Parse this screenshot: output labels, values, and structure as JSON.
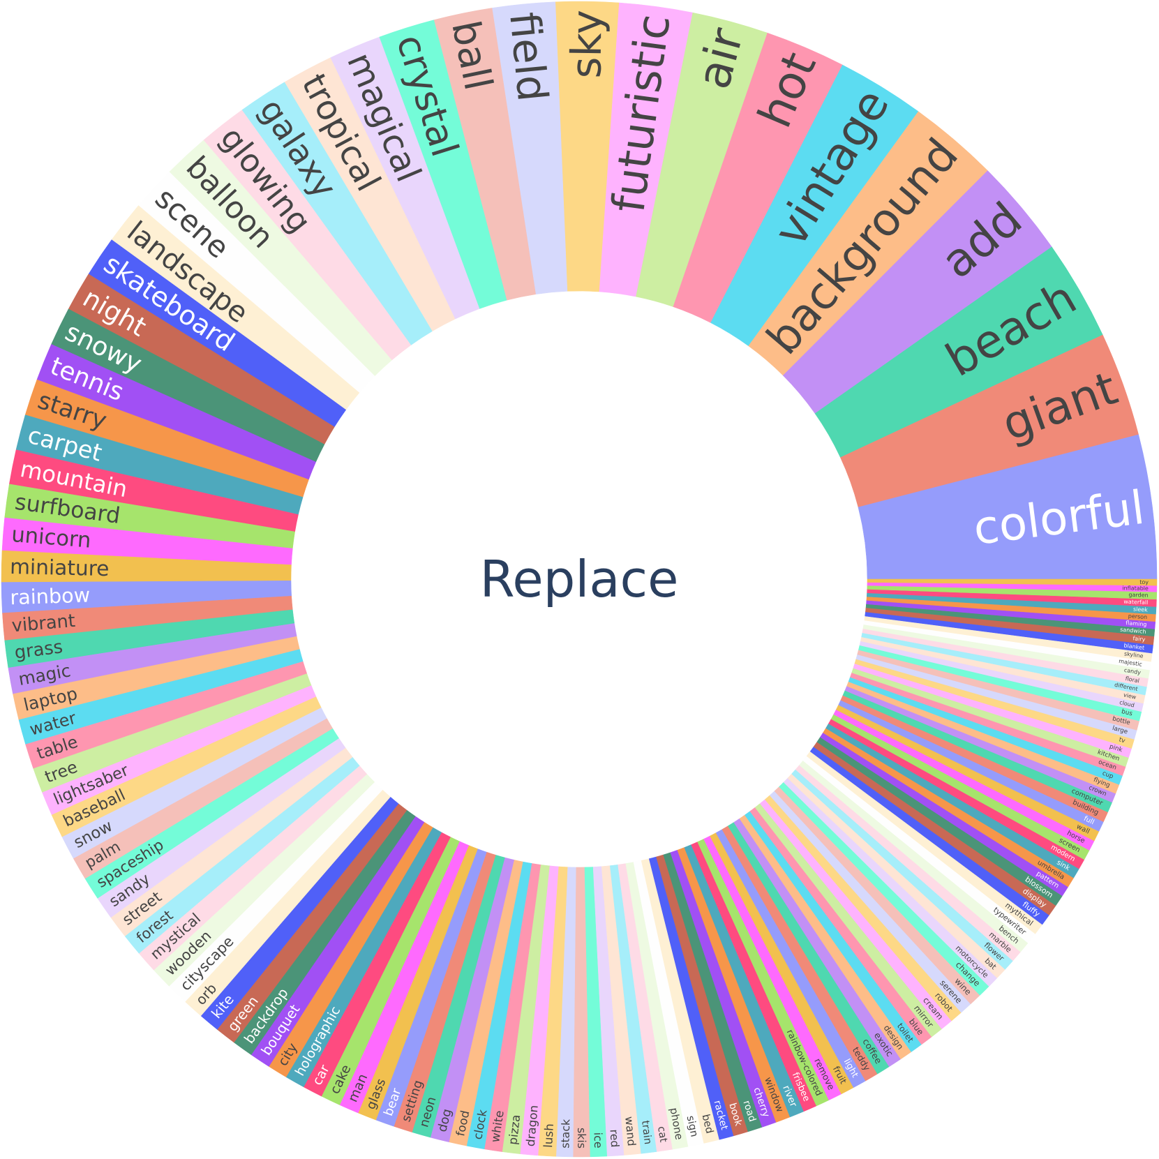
{
  "chart_data": {
    "type": "sunburst",
    "root": "Replace",
    "labels": [
      "colorful",
      "giant",
      "beach",
      "add",
      "background",
      "vintage",
      "hot",
      "air",
      "futuristic",
      "sky",
      "field",
      "ball",
      "crystal",
      "magical",
      "tropical",
      "galaxy",
      "glowing",
      "balloon",
      "scene",
      "landscape",
      "skateboard",
      "night",
      "snowy",
      "tennis",
      "starry",
      "carpet",
      "mountain",
      "surfboard",
      "unicorn",
      "miniature",
      "rainbow",
      "vibrant",
      "grass",
      "magic",
      "laptop",
      "water",
      "table",
      "tree",
      "lightsaber",
      "baseball",
      "snow",
      "palm",
      "spaceship",
      "sandy",
      "street",
      "forest",
      "mystical",
      "wooden",
      "cityscape",
      "orb",
      "kite",
      "green",
      "backdrop",
      "bouquet",
      "city",
      "holographic",
      "car",
      "cake",
      "man",
      "glass",
      "bear",
      "setting",
      "neon",
      "dog",
      "food",
      "clock",
      "white",
      "pizza",
      "dragon",
      "lush",
      "stack",
      "skis",
      "ice",
      "red",
      "wand",
      "train",
      "cat",
      "phone",
      "sign",
      "bed",
      "racket",
      "book",
      "road",
      "cherry",
      "window",
      "river",
      "frisbee",
      "rainbow-colored",
      "remove",
      "fruit",
      "light",
      "teddy",
      "coffee",
      "exotic",
      "design",
      "toilet",
      "blue",
      "mirror",
      "cream",
      "robot",
      "serene",
      "wine",
      "change",
      "motorcycle",
      "bat",
      "flower",
      "marble",
      "bench",
      "typewriter",
      "mythical",
      "fluffy",
      "display",
      "blossom",
      "pattern",
      "umbrella",
      "sink",
      "modern",
      "screen",
      "horse",
      "wall",
      "full",
      "building",
      "computer",
      "crown",
      "flying",
      "cup",
      "ocean",
      "kitchen",
      "pink",
      "tv",
      "large",
      "bottle",
      "bus",
      "cloud",
      "view",
      "different",
      "floral",
      "candy",
      "majestic",
      "skyline",
      "blanket",
      "fairy",
      "sandwich",
      "flaming",
      "person",
      "sleek",
      "waterfall",
      "garden",
      "inflatable",
      "toy"
    ],
    "values": [
      13.8,
      10,
      9.6,
      9.4,
      8.6,
      8.4,
      7.7,
      7.3,
      7,
      6,
      6,
      5.6,
      5.4,
      5.0,
      4.9,
      4.8,
      4.6,
      4.4,
      4.3,
      4.1,
      3.9,
      3.8,
      3.7,
      3.6,
      3.5,
      3.4,
      3.3,
      3.2,
      3.1,
      3.0,
      2.9,
      2.6,
      2.6,
      2.5,
      2.5,
      2.4,
      2.4,
      2.4,
      2.3,
      2.3,
      2.3,
      2.2,
      2.2,
      2.2,
      2.2,
      2.1,
      2.1,
      2.1,
      2.1,
      2.0,
      2.0,
      2.0,
      2.0,
      2.0,
      1.9,
      1.9,
      1.9,
      1.9,
      1.9,
      1.8,
      1.8,
      1.8,
      1.8,
      1.8,
      1.7,
      1.7,
      1.7,
      1.7,
      1.7,
      1.7,
      1.6,
      1.6,
      1.6,
      1.6,
      1.6,
      1.5,
      1.5,
      1.5,
      1.5,
      1.5,
      1.4,
      1.4,
      1.4,
      1.4,
      1.4,
      1.4,
      1.3,
      1.3,
      1.3,
      1.3,
      1.3,
      1.3,
      1.3,
      1.3,
      1.2,
      1.2,
      1.2,
      1.2,
      1.2,
      1.2,
      1.2,
      1.2,
      1.2,
      1.1,
      1.1,
      1.1,
      1.1,
      1.1,
      1.1,
      1.1,
      1.1,
      1.1,
      1.1,
      1.0,
      1.0,
      1.0,
      1.0,
      1.0,
      1.0,
      1.0,
      1.0,
      1.0,
      1.0,
      0.9,
      0.9,
      0.9,
      0.9,
      0.9,
      0.9,
      0.9,
      0.9,
      0.9,
      0.9,
      0.8,
      0.8,
      0.8,
      0.8,
      0.8,
      0.8,
      0.8,
      0.8,
      0.8,
      0.7,
      0.7,
      0.7,
      0.7,
      0.7,
      0.7,
      0.6,
      0.6
    ],
    "palette": [
      "#959cfb",
      "#f08a78",
      "#4fd8b0",
      "#c290f5",
      "#fdbd88",
      "#5cdcf1",
      "#fe96b0",
      "#cdeea2",
      "#feb3fe",
      "#fdd886",
      "#d6d9fc",
      "#f5c0b9",
      "#74fcd8",
      "#e9d6fc",
      "#fee5d4",
      "#a6eefa",
      "#fedbe6",
      "#eefae2",
      "#fefefe",
      "#fef0d4",
      "#5060f8",
      "#c86955",
      "#4b9478",
      "#a150f4",
      "#f6964a",
      "#4ea9bd",
      "#fe4b80",
      "#a6e46c",
      "#fe6afe",
      "#f2c04f"
    ],
    "text_palette": [
      "#ffffff",
      "#444444",
      "#444444",
      "#444444",
      "#444444",
      "#444444",
      "#444444",
      "#444444",
      "#444444",
      "#444444",
      "#444444",
      "#444444",
      "#444444",
      "#444444",
      "#444444",
      "#444444",
      "#444444",
      "#444444",
      "#444444",
      "#444444",
      "#ffffff",
      "#ffffff",
      "#ffffff",
      "#ffffff",
      "#444444",
      "#ffffff",
      "#ffffff",
      "#444444",
      "#444444",
      "#444444"
    ],
    "root_color": "#2a3f5f"
  }
}
